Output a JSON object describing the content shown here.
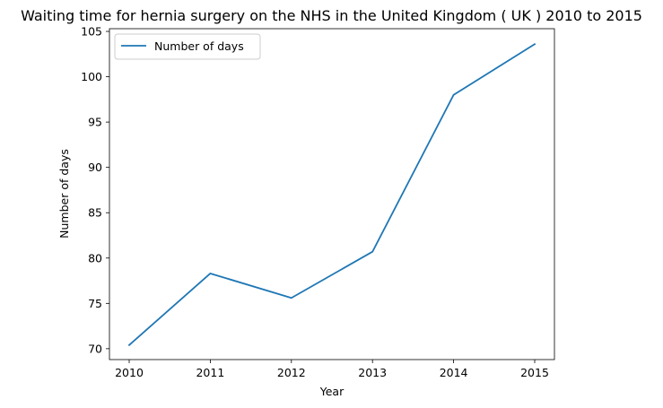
{
  "chart_data": {
    "type": "line",
    "title": "Waiting time for hernia surgery on the NHS in the United Kingdom ( UK ) 2010 to 2015",
    "xlabel": "Year",
    "ylabel": "Number of days",
    "x": [
      "2010",
      "2011",
      "2012",
      "2013",
      "2014",
      "2015"
    ],
    "series": [
      {
        "name": "Number of days",
        "color": "#1f77b4",
        "values": [
          70.4,
          78.3,
          75.6,
          80.7,
          98.0,
          103.6
        ]
      }
    ],
    "yticks": [
      70,
      75,
      80,
      85,
      90,
      95,
      100,
      105
    ],
    "ylim": [
      68.8,
      105.3
    ],
    "grid": false,
    "legend": "top-left"
  }
}
